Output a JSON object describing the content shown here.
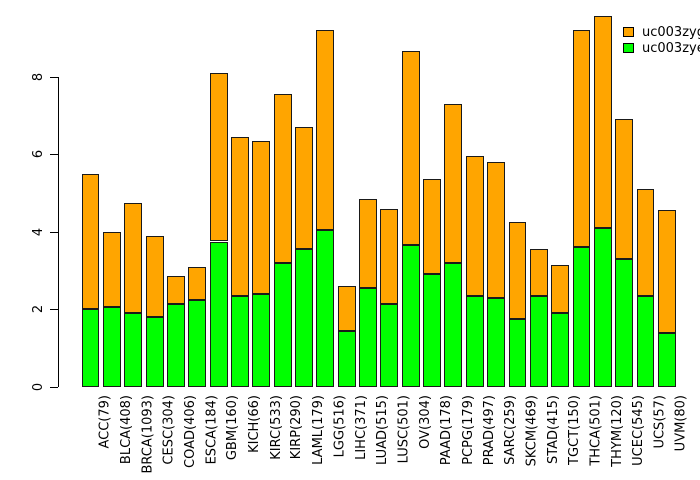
{
  "legend": {
    "items": [
      {
        "label": "uc003zyg",
        "color": "#FFA500"
      },
      {
        "label": "uc003zye",
        "color": "#00FF00"
      }
    ]
  },
  "chart_data": {
    "type": "bar",
    "stacked": true,
    "title": "",
    "xlabel": "",
    "ylabel": "",
    "grid": false,
    "legend_position": "top-right",
    "ylim": [
      0,
      9.6
    ],
    "yticks": [
      0,
      2,
      4,
      6,
      8
    ],
    "categories": [
      "ACC(79)",
      "BLCA(408)",
      "BRCA(1093)",
      "CESC(304)",
      "COAD(406)",
      "ESCA(184)",
      "GBM(160)",
      "KICH(66)",
      "KIRC(533)",
      "KIRP(290)",
      "LAML(179)",
      "LGG(516)",
      "LIHC(371)",
      "LUAD(515)",
      "LUSC(501)",
      "OV(304)",
      "PAAD(178)",
      "PCPG(179)",
      "PRAD(497)",
      "SARC(259)",
      "SKCM(469)",
      "STAD(415)",
      "TGCT(150)",
      "THCA(501)",
      "THYM(120)",
      "UCEC(545)",
      "UCS(57)",
      "UVM(80)"
    ],
    "series": [
      {
        "name": "uc003zye",
        "color": "#00FF00",
        "values": [
          2.0,
          2.05,
          1.9,
          1.8,
          2.15,
          2.25,
          3.75,
          2.35,
          2.4,
          3.2,
          3.55,
          4.05,
          1.45,
          2.55,
          2.15,
          3.65,
          2.9,
          3.2,
          2.35,
          2.3,
          1.75,
          2.35,
          1.9,
          3.6,
          4.1,
          3.3,
          2.35,
          1.4
        ]
      },
      {
        "name": "uc003zyg",
        "color": "#FFA500",
        "values": [
          3.5,
          1.95,
          2.85,
          2.1,
          0.7,
          0.85,
          4.35,
          4.1,
          3.95,
          4.35,
          3.15,
          5.15,
          1.15,
          2.3,
          2.45,
          5.0,
          2.45,
          4.1,
          3.6,
          3.5,
          2.5,
          1.2,
          1.25,
          5.6,
          5.45,
          3.6,
          2.75,
          3.15
        ]
      }
    ],
    "totals": [
      5.5,
      4.0,
      4.75,
      3.9,
      2.85,
      3.1,
      8.1,
      6.45,
      6.35,
      7.55,
      6.7,
      9.2,
      2.6,
      4.85,
      4.6,
      8.65,
      5.35,
      7.3,
      5.95,
      5.8,
      4.25,
      3.55,
      3.15,
      9.2,
      9.55,
      6.9,
      5.1,
      4.55
    ]
  }
}
